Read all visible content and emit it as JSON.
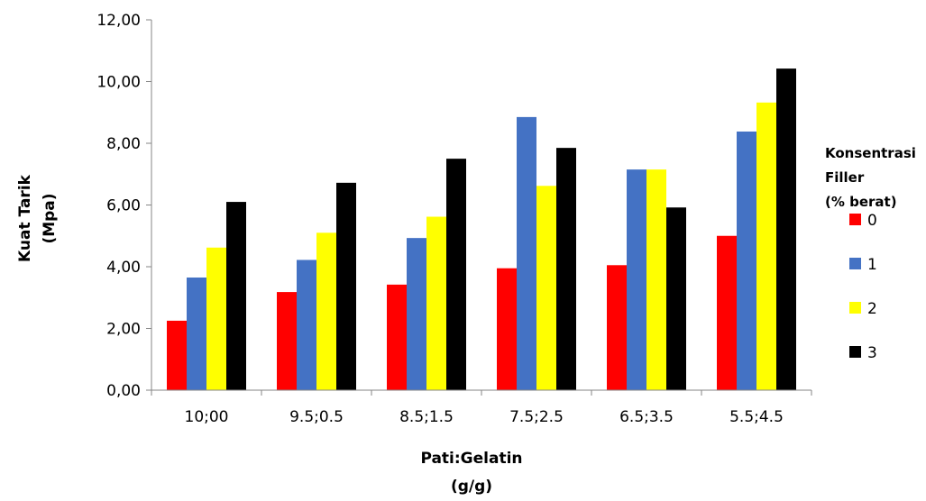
{
  "chart_data": {
    "type": "bar",
    "categories": [
      "10;00",
      "9.5;0.5",
      "8.5;1.5",
      "7.5;2.5",
      "6.5;3.5",
      "5.5;4.5"
    ],
    "y_tick_labels": [
      "0,00",
      "2,00",
      "4,00",
      "6,00",
      "8,00",
      "10,00",
      "12,00"
    ],
    "ylim": [
      0,
      12
    ],
    "ylabel_lines": [
      "Kuat Tarik",
      "(Mpa)"
    ],
    "xlabel_lines": [
      "Pati:Gelatin",
      "(g/g)"
    ],
    "legend_title_lines": [
      "Konsentrasi",
      "Filler",
      "(% berat)"
    ],
    "legend_position": "right",
    "grid": false,
    "series": [
      {
        "name": "0",
        "color": "#ff0000",
        "values": [
          2.25,
          3.18,
          3.42,
          3.95,
          4.05,
          5.0
        ]
      },
      {
        "name": "1",
        "color": "#4472c4",
        "values": [
          3.65,
          4.22,
          4.93,
          8.85,
          7.15,
          8.38
        ]
      },
      {
        "name": "2",
        "color": "#ffff00",
        "values": [
          4.62,
          5.1,
          5.62,
          6.62,
          7.15,
          9.32
        ]
      },
      {
        "name": "3",
        "color": "#000000",
        "values": [
          6.1,
          6.72,
          7.5,
          7.85,
          5.92,
          10.42
        ]
      }
    ]
  }
}
